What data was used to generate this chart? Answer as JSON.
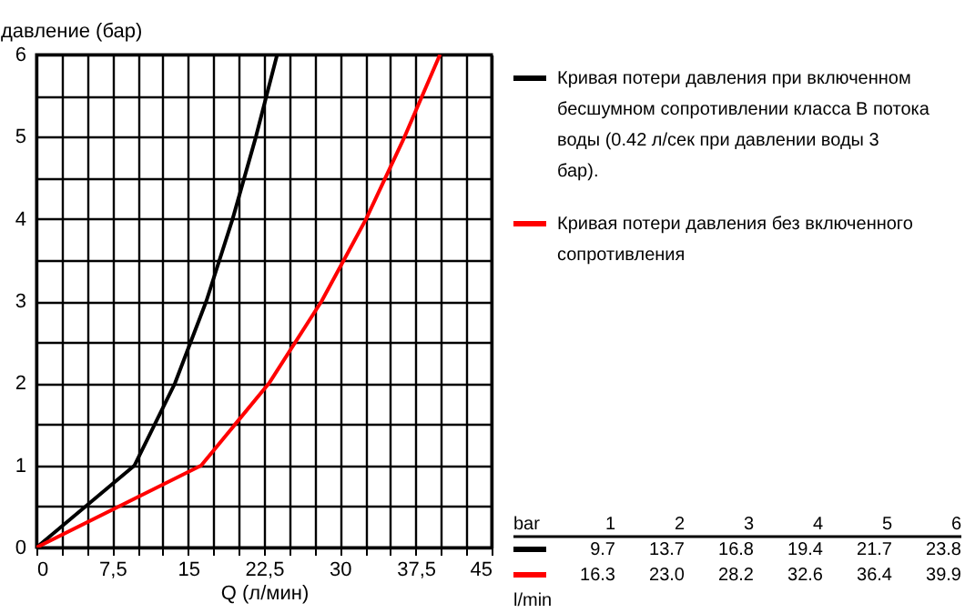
{
  "chart_data": {
    "type": "line",
    "xlabel": "Q (л/мин)",
    "ylabel": "давление (бар)",
    "xlim": [
      0,
      45
    ],
    "ylim": [
      0,
      6
    ],
    "xticks": [
      0,
      {
        "value": 2.5,
        "label": null
      },
      {
        "value": 5,
        "label": null
      },
      {
        "value": 7.5,
        "label": "7,5"
      },
      {
        "value": 10,
        "label": null
      },
      {
        "value": 12.5,
        "label": null
      },
      15,
      {
        "value": 17.5,
        "label": null
      },
      {
        "value": 20,
        "label": null
      },
      {
        "value": 22.5,
        "label": "22,5"
      },
      {
        "value": 25,
        "label": null
      },
      {
        "value": 27.5,
        "label": null
      },
      30,
      {
        "value": 32.5,
        "label": null
      },
      {
        "value": 35,
        "label": null
      },
      {
        "value": 37.5,
        "label": "37,5"
      },
      {
        "value": 40,
        "label": null
      },
      {
        "value": 42.5,
        "label": null
      },
      45
    ],
    "yticks": [
      0,
      {
        "value": 0.5,
        "label": null
      },
      1,
      {
        "value": 1.5,
        "label": null
      },
      2,
      {
        "value": 2.5,
        "label": null
      },
      3,
      {
        "value": 3.5,
        "label": null
      },
      4,
      {
        "value": 4.5,
        "label": null
      },
      5,
      {
        "value": 5.5,
        "label": null
      },
      6
    ],
    "grid": true,
    "legend": "right",
    "annotations": [
      "bar",
      "1",
      "2",
      "3",
      "4",
      "5",
      "6",
      "9.7",
      "13.7",
      "16.8",
      "19.4",
      "21.7",
      "23.8",
      "16.3",
      "23.0",
      "28.2",
      "32.6",
      "36.4",
      "39.9",
      "l/min"
    ],
    "series": [
      {
        "name": "Кривая потери давления при включенном бесшумном сопротивлении класса B потока воды (0.42 л/сек при давлении воды 3 бар).",
        "color": "#000000",
        "x": [
          0,
          9.7,
          13.7,
          16.8,
          19.4,
          21.7,
          23.8
        ],
        "values": [
          0,
          1,
          2,
          3,
          4,
          5,
          6
        ]
      },
      {
        "name": "Кривая потери давления без включенного сопротивления",
        "color": "#ff0000",
        "x": [
          0,
          16.3,
          23.0,
          28.2,
          32.6,
          36.4,
          39.9
        ],
        "values": [
          0,
          1,
          2,
          3,
          4,
          5,
          6
        ]
      }
    ]
  }
}
